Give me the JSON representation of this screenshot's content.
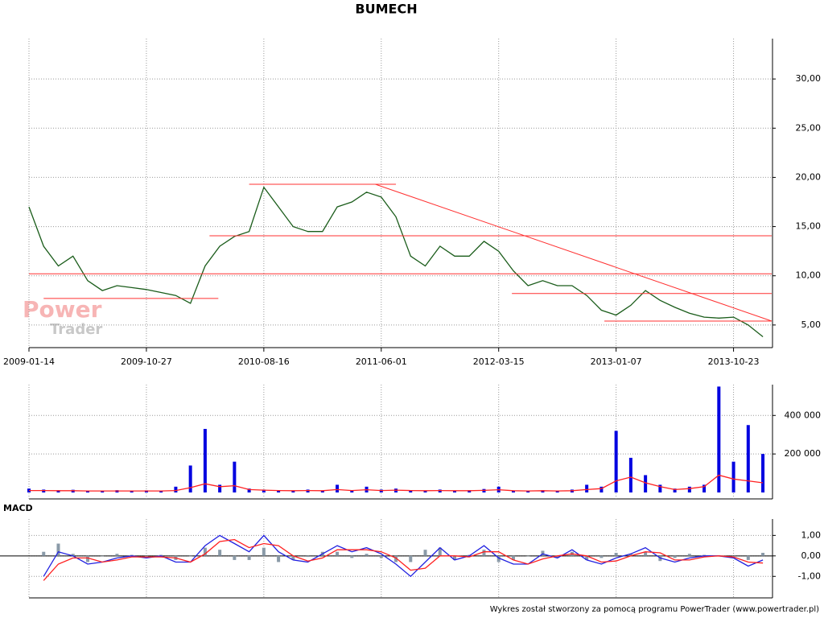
{
  "chart_data": [
    {
      "type": "line",
      "title": "BUMECH",
      "watermark": [
        "Power",
        "Trader"
      ],
      "xlim": [
        0,
        50.6
      ],
      "xticks": [
        {
          "value": 0,
          "label": "2009-01-14"
        },
        {
          "value": 8,
          "label": "2009-10-27"
        },
        {
          "value": 16,
          "label": "2010-08-16"
        },
        {
          "value": 24,
          "label": "2011-06-01"
        },
        {
          "value": 32,
          "label": "2012-03-15"
        },
        {
          "value": 40,
          "label": "2013-01-07"
        },
        {
          "value": 48,
          "label": "2013-10-23"
        }
      ],
      "ylim": [
        2.7,
        34.1
      ],
      "yticks": [
        {
          "value": 5,
          "label": "5,00"
        },
        {
          "value": 10,
          "label": "10,00"
        },
        {
          "value": 15,
          "label": "15,00"
        },
        {
          "value": 20,
          "label": "20,00"
        },
        {
          "value": 25,
          "label": "25,00"
        },
        {
          "value": 30,
          "label": "30,00"
        }
      ],
      "grid": true,
      "series": [
        {
          "color": "#1a5c1a",
          "values": [
            17,
            13,
            11,
            12,
            9.5,
            8.5,
            9,
            8.8,
            8.6,
            8.3,
            8,
            7.2,
            11,
            13,
            14,
            14.5,
            19,
            17,
            15,
            14.5,
            14.5,
            17,
            17.5,
            18.5,
            18,
            16,
            12,
            11,
            13,
            12,
            12,
            13.5,
            12.5,
            10.5,
            9,
            9.5,
            9,
            9,
            8,
            6.5,
            6,
            7,
            8.5,
            7.5,
            6.8,
            6.2,
            5.8,
            5.7,
            5.8,
            5,
            3.8
          ]
        }
      ],
      "trendlines": {
        "color": "#ff3030",
        "lines": [
          {
            "x": [
              15,
              25
            ],
            "values": [
              19.3,
              19.3
            ]
          },
          {
            "x": [
              12.3,
              50.6
            ],
            "values": [
              14.07,
              14.07
            ]
          },
          {
            "x": [
              0,
              50.6
            ],
            "values": [
              10.2,
              10.2
            ]
          },
          {
            "x": [
              32.9,
              50.6
            ],
            "values": [
              8.2,
              8.2
            ]
          },
          {
            "x": [
              1,
              12.9
            ],
            "values": [
              7.7,
              7.7
            ]
          },
          {
            "x": [
              39.2,
              50.6
            ],
            "values": [
              5.4,
              5.4
            ]
          },
          {
            "x": [
              23.6,
              50.6
            ],
            "values": [
              19.3,
              5.4
            ]
          }
        ]
      }
    },
    {
      "type": "bar",
      "ylim": [
        0,
        560000
      ],
      "yticks": [
        {
          "value": 200000,
          "label": "200 000"
        },
        {
          "value": 400000,
          "label": "400 000"
        }
      ],
      "grid": true,
      "series": [
        {
          "type": "bar",
          "color": "#0000e0",
          "values": [
            20000,
            15000,
            12000,
            14000,
            10000,
            9000,
            12000,
            10000,
            11000,
            9000,
            30000,
            140000,
            330000,
            40000,
            160000,
            20000,
            15000,
            12000,
            10000,
            15000,
            10000,
            40000,
            12000,
            30000,
            15000,
            20000,
            12000,
            10000,
            15000,
            10000,
            12000,
            18000,
            30000,
            10000,
            9000,
            12000,
            10000,
            15000,
            40000,
            30000,
            320000,
            180000,
            90000,
            40000,
            20000,
            30000,
            40000,
            550000,
            160000,
            350000,
            200000
          ]
        },
        {
          "type": "line",
          "color": "#ff2020",
          "values": [
            10000,
            10000,
            9000,
            9000,
            8000,
            8000,
            8000,
            8000,
            8000,
            8000,
            10000,
            25000,
            45000,
            30000,
            35000,
            15000,
            12000,
            10000,
            9000,
            10000,
            9000,
            15000,
            10000,
            14000,
            10000,
            12000,
            10000,
            9000,
            10000,
            9000,
            9000,
            11000,
            14000,
            9000,
            8000,
            9000,
            8000,
            9000,
            15000,
            20000,
            60000,
            80000,
            50000,
            30000,
            15000,
            20000,
            30000,
            90000,
            70000,
            60000,
            50000
          ]
        }
      ]
    },
    {
      "type": "line",
      "title": "MACD",
      "ylim": [
        -2.05,
        1.8
      ],
      "yticks": [
        {
          "value": -1,
          "label": "-1,00"
        },
        {
          "value": 0,
          "label": "0,00"
        },
        {
          "value": 1,
          "label": "1,00"
        }
      ],
      "grid": true,
      "series": [
        {
          "type": "bar",
          "color": "#8a9aa8",
          "values": [
            null,
            0.2,
            0.6,
            0.1,
            -0.3,
            0.0,
            0.1,
            0.05,
            -0.05,
            0.05,
            -0.2,
            0.0,
            0.4,
            0.3,
            -0.2,
            -0.2,
            0.4,
            -0.3,
            -0.2,
            -0.05,
            0.2,
            0.2,
            -0.1,
            0.1,
            -0.1,
            -0.3,
            -0.3,
            0.3,
            0.4,
            -0.2,
            0.05,
            0.3,
            -0.3,
            -0.2,
            0.0,
            0.25,
            -0.1,
            0.2,
            -0.2,
            -0.1,
            0.15,
            0.1,
            0.2,
            -0.25,
            -0.1,
            0.1,
            0.05,
            0.0,
            -0.05,
            -0.2,
            0.15
          ]
        },
        {
          "type": "line",
          "color": "#2020e0",
          "values": [
            null,
            -1.0,
            0.2,
            0.0,
            -0.4,
            -0.3,
            -0.1,
            0.0,
            -0.1,
            0.0,
            -0.3,
            -0.3,
            0.5,
            1.0,
            0.6,
            0.2,
            1.0,
            0.2,
            -0.2,
            -0.3,
            0.1,
            0.5,
            0.2,
            0.4,
            0.1,
            -0.4,
            -1.0,
            -0.3,
            0.4,
            -0.2,
            0.0,
            0.5,
            -0.1,
            -0.4,
            -0.4,
            0.1,
            -0.1,
            0.3,
            -0.2,
            -0.4,
            -0.1,
            0.1,
            0.4,
            -0.1,
            -0.3,
            -0.1,
            0.0,
            0.0,
            -0.1,
            -0.5,
            -0.2
          ]
        },
        {
          "type": "line",
          "color": "#ff2020",
          "values": [
            null,
            -1.2,
            -0.4,
            -0.1,
            -0.1,
            -0.3,
            -0.2,
            -0.05,
            -0.05,
            -0.05,
            -0.1,
            -0.3,
            0.1,
            0.7,
            0.8,
            0.4,
            0.6,
            0.5,
            0.0,
            -0.25,
            -0.1,
            0.3,
            0.3,
            0.3,
            0.2,
            -0.1,
            -0.7,
            -0.6,
            0.0,
            0.0,
            -0.05,
            0.2,
            0.2,
            -0.2,
            -0.4,
            -0.15,
            0.0,
            0.1,
            0.0,
            -0.3,
            -0.25,
            0.0,
            0.2,
            0.15,
            -0.2,
            -0.2,
            -0.05,
            0.0,
            -0.05,
            -0.3,
            -0.35
          ]
        }
      ]
    }
  ],
  "footer": "Wykres został stworzony za pomocą programu PowerTrader (www.powertrader.pl)"
}
